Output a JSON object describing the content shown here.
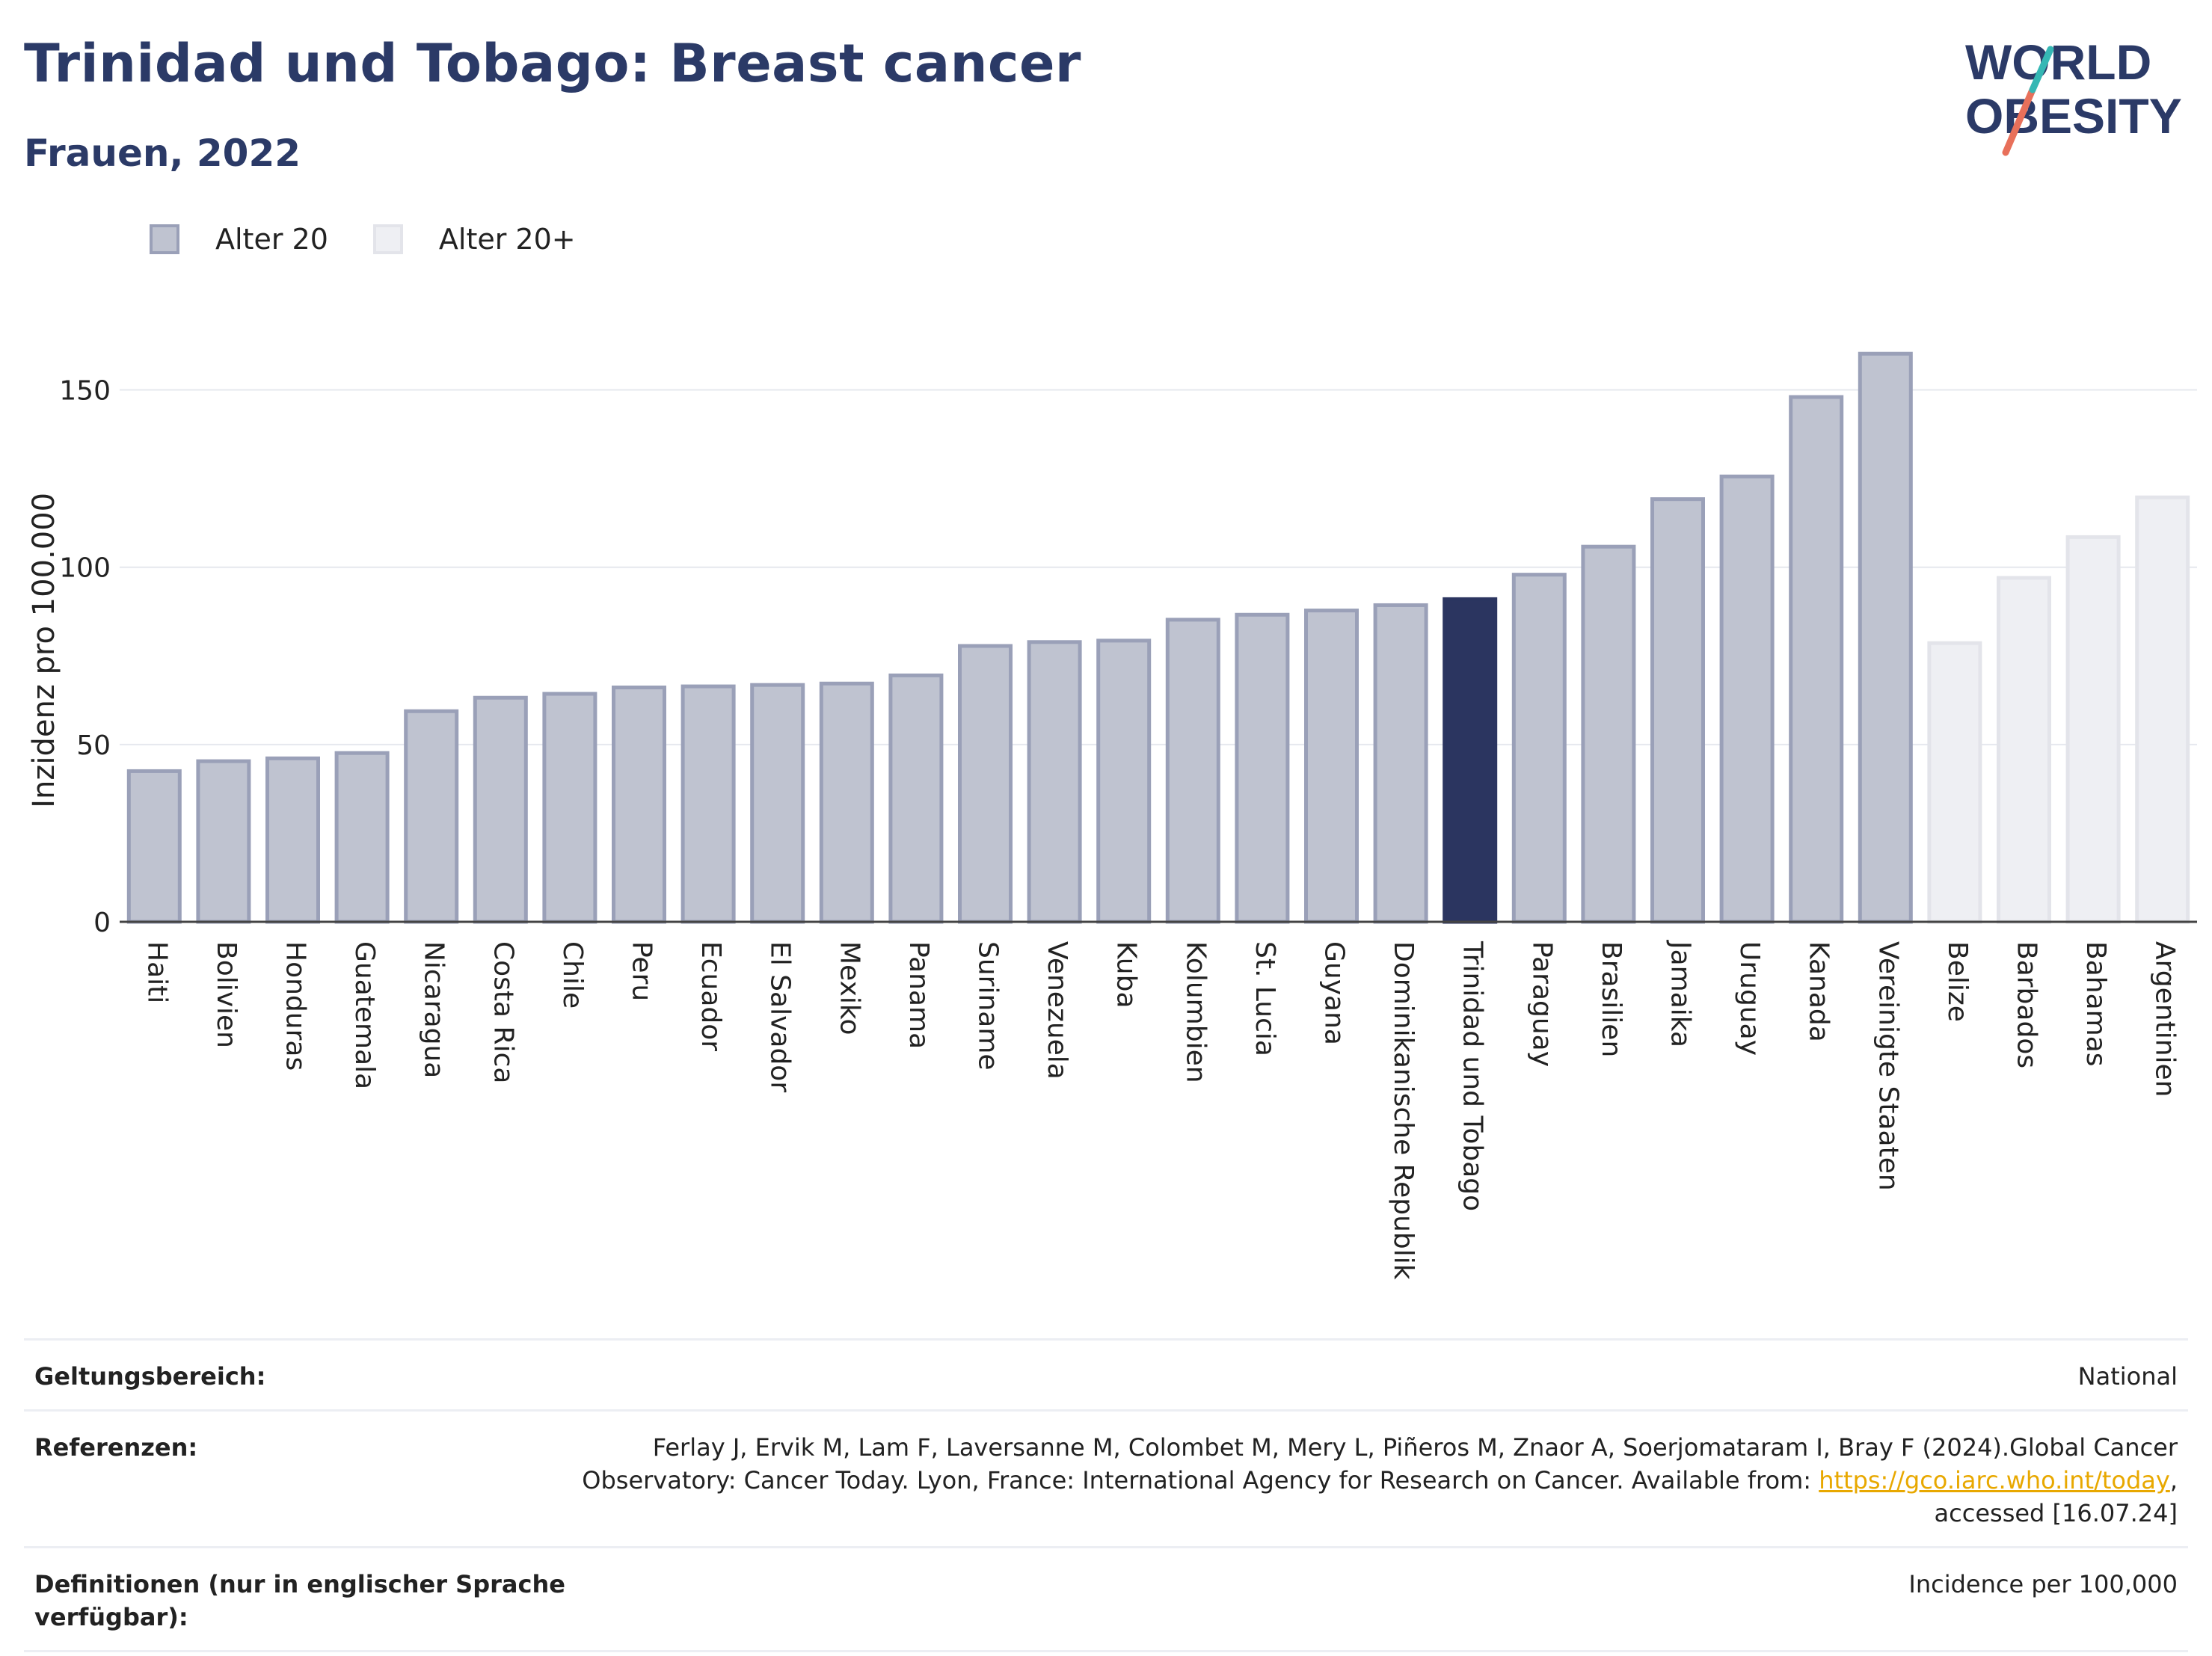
{
  "header": {
    "title": "Trinidad und Tobago: Breast cancer",
    "subtitle": "Frauen, 2022"
  },
  "logo": {
    "line1": "WORLD",
    "line2": "OBESITY"
  },
  "legend": [
    {
      "label": "Alter 20",
      "fill": "#bfc3d0",
      "stroke": "#9aa0b8"
    },
    {
      "label": "Alter 20+",
      "fill": "#eeeff3",
      "stroke": "#e3e4ea"
    }
  ],
  "chart_data": {
    "type": "bar",
    "ylabel": "Inzidenz pro 100.000",
    "ylim": [
      0,
      170
    ],
    "yticks": [
      0,
      50,
      100,
      150
    ],
    "grid": true,
    "highlight_color": "#2b3560",
    "categories": [
      "Haiti",
      "Bolivien",
      "Honduras",
      "Guatemala",
      "Nicaragua",
      "Costa Rica",
      "Chile",
      "Peru",
      "Ecuador",
      "El Salvador",
      "Mexiko",
      "Panama",
      "Suriname",
      "Venezuela",
      "Kuba",
      "Kolumbien",
      "St. Lucia",
      "Guyana",
      "Dominikanische Republik",
      "Trinidad und Tobago",
      "Paraguay",
      "Brasilien",
      "Jamaika",
      "Uruguay",
      "Kanada",
      "Vereinigte Staaten",
      "Belize",
      "Barbados",
      "Bahamas",
      "Argentinien"
    ],
    "values": [
      42.5,
      45.3,
      46.1,
      47.6,
      59.4,
      63.2,
      64.3,
      66.1,
      66.4,
      66.8,
      67.2,
      69.5,
      77.8,
      78.9,
      79.3,
      85.2,
      86.6,
      87.8,
      89.3,
      91.0,
      97.9,
      105.8,
      119.2,
      125.6,
      148.0,
      160.2,
      78.6,
      97.0,
      108.5,
      119.7
    ],
    "group": [
      "Alter 20",
      "Alter 20",
      "Alter 20",
      "Alter 20",
      "Alter 20",
      "Alter 20",
      "Alter 20",
      "Alter 20",
      "Alter 20",
      "Alter 20",
      "Alter 20",
      "Alter 20",
      "Alter 20",
      "Alter 20",
      "Alter 20",
      "Alter 20",
      "Alter 20",
      "Alter 20",
      "Alter 20",
      "Alter 20",
      "Alter 20",
      "Alter 20",
      "Alter 20",
      "Alter 20",
      "Alter 20",
      "Alter 20",
      "Alter 20+",
      "Alter 20+",
      "Alter 20+",
      "Alter 20+"
    ],
    "highlight": "Trinidad und Tobago"
  },
  "footer": {
    "scope_label": "Geltungsbereich:",
    "scope_value": "National",
    "ref_label": "Referenzen:",
    "ref_text_1": "Ferlay J, Ervik M, Lam F, Laversanne M, Colombet M, Mery L, Piñeros M, Znaor A, Soerjomataram I, Bray F (2024).Global Cancer",
    "ref_text_2": "Observatory: Cancer Today. Lyon, France: International Agency for Research on Cancer. Available from: ",
    "ref_link": "https://gco.iarc.who.int/today",
    "ref_text_3": ",",
    "ref_text_4": "accessed [16.07.24]",
    "def_label": "Definitionen (nur in englischer Sprache verfügbar):",
    "def_value": "Incidence per 100,000"
  }
}
